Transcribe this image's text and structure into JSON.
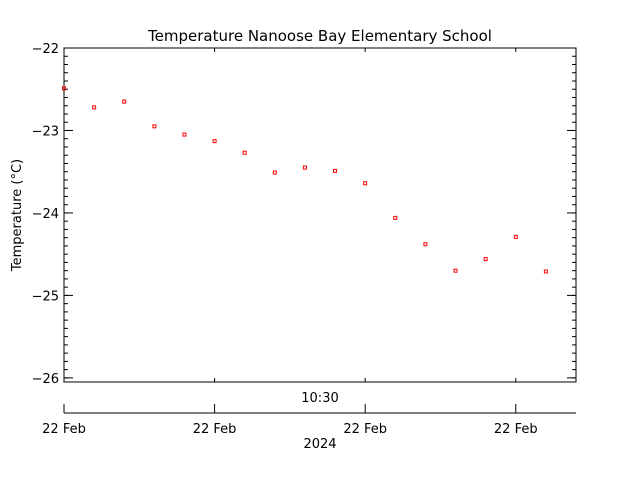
{
  "chart_data": {
    "type": "scatter",
    "title": "Temperature Nanoose Bay Elementary School",
    "ylabel": "Temperature (°C)",
    "ylim": [
      -26.05,
      -22.0
    ],
    "yticks": [
      -22,
      -23,
      -24,
      -25,
      -26
    ],
    "ytick_labels": [
      "−22",
      "−23",
      "−24",
      "−25",
      "−26"
    ],
    "x_minute_range": [
      10.0,
      10.85
    ],
    "time_label": "10:30",
    "xticks": [
      10.0,
      10.25,
      10.5,
      10.75
    ],
    "xtick_labels": [
      "22 Feb",
      "22 Feb",
      "22 Feb",
      "22 Feb"
    ],
    "year_label": "2024",
    "points": [
      {
        "t": 10.0,
        "y": -22.49
      },
      {
        "t": 10.05,
        "y": -22.72
      },
      {
        "t": 10.1,
        "y": -22.65
      },
      {
        "t": 10.15,
        "y": -22.95
      },
      {
        "t": 10.2,
        "y": -23.05
      },
      {
        "t": 10.25,
        "y": -23.13
      },
      {
        "t": 10.3,
        "y": -23.27
      },
      {
        "t": 10.35,
        "y": -23.51
      },
      {
        "t": 10.4,
        "y": -23.45
      },
      {
        "t": 10.45,
        "y": -23.49
      },
      {
        "t": 10.5,
        "y": -23.64
      },
      {
        "t": 10.55,
        "y": -24.06
      },
      {
        "t": 10.6,
        "y": -24.38
      },
      {
        "t": 10.65,
        "y": -24.7
      },
      {
        "t": 10.7,
        "y": -24.56
      },
      {
        "t": 10.75,
        "y": -24.29
      },
      {
        "t": 10.8,
        "y": -24.71
      }
    ],
    "marker_color": "#ff0000",
    "grid": false
  }
}
